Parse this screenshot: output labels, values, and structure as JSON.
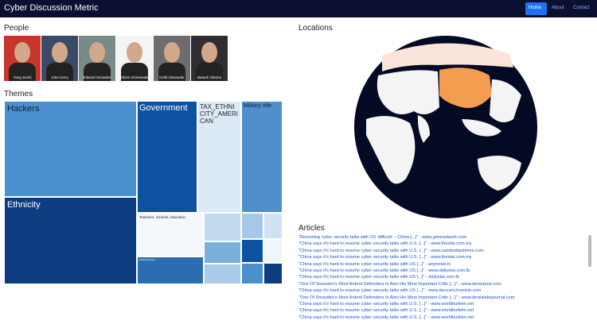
{
  "navbar": {
    "brand": "Cyber Discussion Metric",
    "links": [
      "Home",
      "About",
      "Contact"
    ]
  },
  "people": {
    "heading": "People",
    "names": [
      "Yang Jiechi",
      "John Kerry",
      "Edward Snowden",
      "Glenn Greenwald",
      "Keith Alexander",
      "Barack Obama"
    ]
  },
  "locations": {
    "heading": "Locations"
  },
  "themes": {
    "heading": "Themes",
    "labels": [
      "Hackers",
      "Government",
      "TAX_ETHNICITY_AMERICAN",
      "Military title",
      "Ethnicity",
      "Teachers, schools, education",
      "Political leaders"
    ]
  },
  "articles": {
    "heading": "Articles",
    "items": [
      "\"Resuming cyber security talks with US 'difficult' – China [...]\" - www.gmanetwork.com",
      "\"China says it's hard to resume cyber security talks with U.S. [...]\" - www.thestar.com.my",
      "\"China says it's hard to resume cyber security talks with U.S. [...]\" - www.cambodiantimes.com",
      "\"China says it's hard to resume cyber security talks with U.S. [...]\" - www.thestar.com.my",
      "\"China says it's hard to resume cyber security talks with US [...]\" - anynews.tv",
      "\"China says it's hard to resume cyber security talks with US [...]\" - www.dailystar.com.lb",
      "\"China says it's hard to resume cyber security talks with US [...]\" - dailystar.com.lb",
      "\"One Of Snowden's Most Ardent Defenders Is Also His Most Important Critic [...]\" - www.doverpost.com",
      "\"China says it's hard to resume cyber security talks with US [...]\" - www.deccanchronicle.com",
      "\"One Of Snowden's Most Ardent Defenders Is Also His Most Important Critic [...]\" - www.devilslakejournal.com",
      "\"China says it's hard to resume cyber security talks with U.S. [...]\" - www.worldbulletin.net",
      "\"China says it's hard to resume cyber security talks with U.S. [...]\" - www.worldbulletin.net",
      "\"China says it's hard to resume cyber security talks with U.S. [...]\" - www.worldbulletin.net"
    ]
  }
}
